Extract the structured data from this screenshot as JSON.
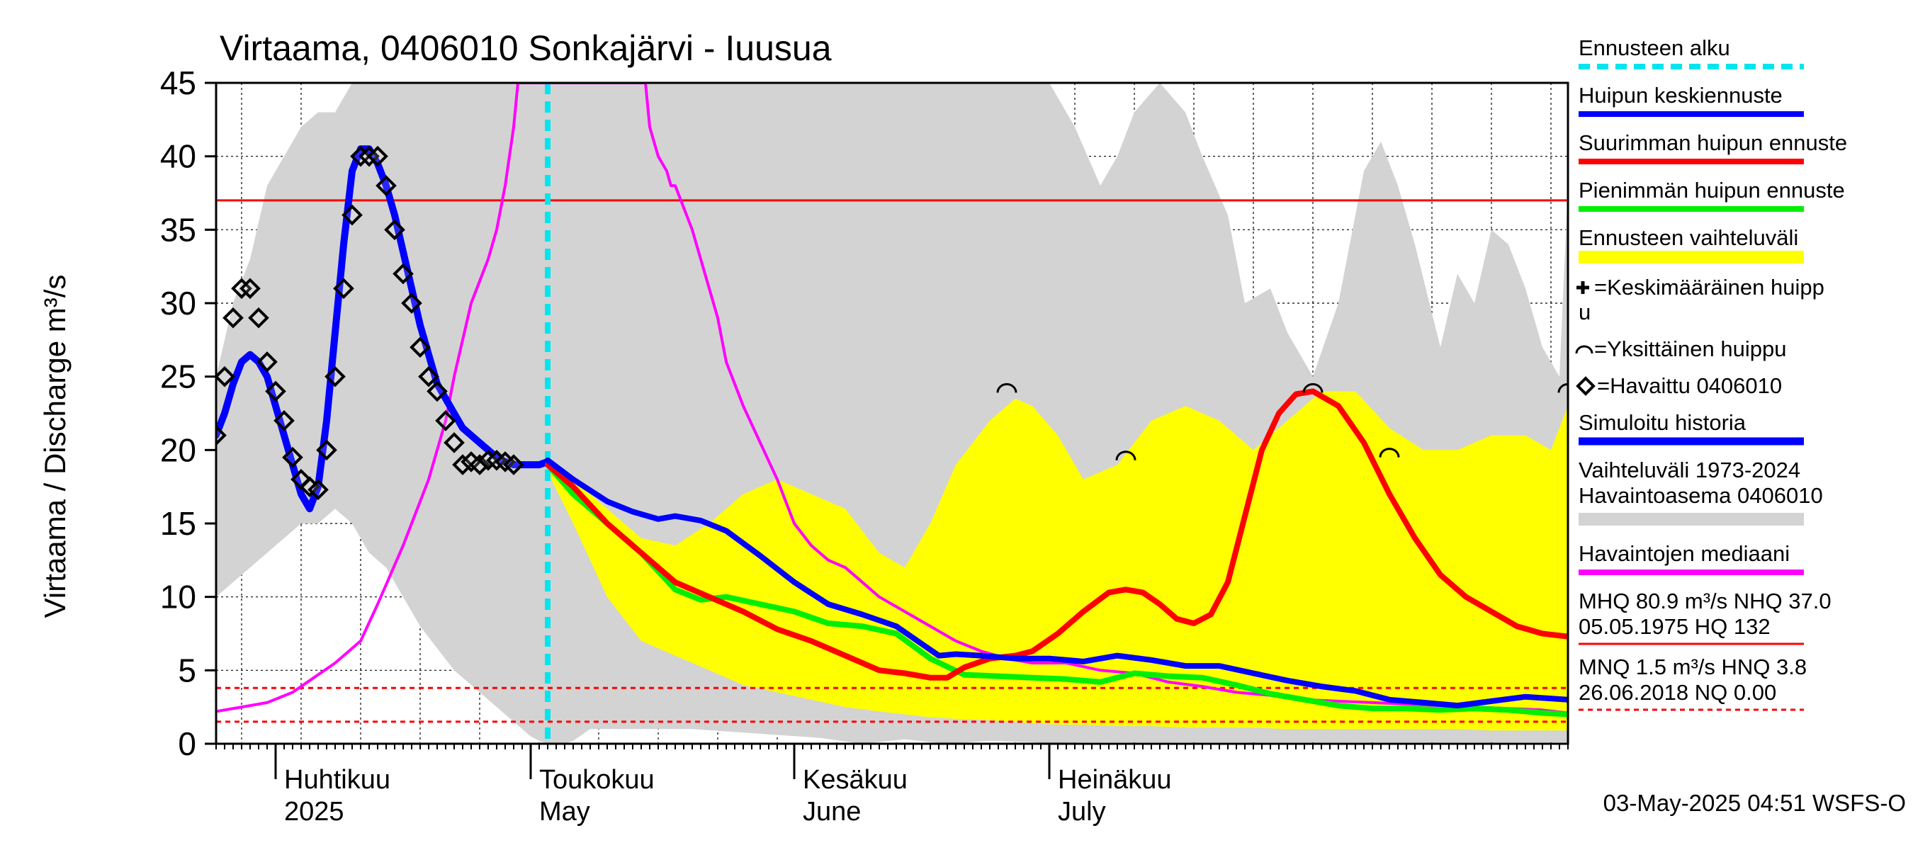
{
  "chart_data": {
    "type": "line",
    "title": "Virtaama, 0406010 Sonkajärvi - Iuusua",
    "ylabel": "Virtaama / Discharge    m³/s",
    "ylim": [
      0,
      45
    ],
    "y_ticks": [
      0,
      5,
      10,
      15,
      20,
      25,
      30,
      35,
      40,
      45
    ],
    "x_unit": "day of year 2025",
    "xlim": [
      84,
      243
    ],
    "forecast_start_day": 123,
    "months": [
      {
        "fi": "Huhtikuu",
        "en": "2025",
        "day": 91
      },
      {
        "fi": "Toukokuu",
        "en": "May",
        "day": 121
      },
      {
        "fi": "Kesäkuu",
        "en": "June",
        "day": 152
      },
      {
        "fi": "Heinäkuu",
        "en": "July",
        "day": 182
      }
    ],
    "hlines": [
      {
        "name": "NHQ 37.0",
        "y": 37.0,
        "color": "#ff0000",
        "style": "solid"
      },
      {
        "name": "HNQ 3.8",
        "y": 3.8,
        "color": "#ff0000",
        "style": "dashed"
      },
      {
        "name": "MNQ 1.5",
        "y": 1.5,
        "color": "#ff0000",
        "style": "dashed"
      },
      {
        "name": "NQ 0.00",
        "y": 0.0,
        "color": "#ff0000",
        "style": "dashed"
      }
    ],
    "historical_range": {
      "name": "Vaihteluväli 1973-2024 Havaintoasema 0406010",
      "color": "#d3d3d3",
      "x": [
        84,
        86,
        88,
        90,
        92,
        94,
        96,
        98,
        100,
        102,
        104,
        106,
        108,
        112,
        116,
        120,
        121,
        122,
        123,
        124,
        125,
        126,
        128,
        130,
        132,
        134,
        136,
        138,
        140,
        145,
        150,
        155,
        160,
        165,
        170,
        175,
        180,
        182,
        185,
        188,
        190,
        192,
        195,
        198,
        200,
        203,
        205,
        208,
        210,
        213,
        216,
        219,
        221,
        223,
        225,
        228,
        230,
        232,
        234,
        236,
        238,
        240,
        242,
        243
      ],
      "upper": [
        25,
        30,
        33,
        38,
        40,
        42,
        43,
        43,
        45,
        45,
        45,
        45,
        45,
        45,
        45,
        45,
        45,
        45,
        45,
        45,
        45,
        45,
        45,
        45,
        45,
        45,
        45,
        45,
        45,
        45,
        45,
        45,
        45,
        45,
        45,
        45,
        45,
        45,
        42,
        38,
        40,
        43,
        45,
        43,
        40,
        36,
        30,
        31,
        28,
        25,
        30,
        39,
        41,
        38,
        34,
        27,
        32,
        30,
        35,
        34,
        31,
        27,
        25,
        38
      ],
      "lower": [
        10,
        11,
        12,
        13,
        14,
        15,
        15,
        16,
        15,
        13,
        12,
        10,
        8,
        5,
        3,
        1,
        0.5,
        0.2,
        0,
        0,
        0,
        0.2,
        1,
        1,
        1,
        1,
        1,
        1,
        1,
        0.8,
        0.6,
        0.4,
        0,
        0.3,
        0,
        0.2,
        0.1,
        0,
        0.1,
        0.1,
        0.1,
        0.1,
        0.1,
        0.1,
        0.1,
        0.1,
        0.1,
        0.1,
        0.1,
        0.1,
        0.1,
        0.1,
        0.1,
        0.1,
        0.1,
        0.1,
        0.1,
        0.1,
        0.1,
        0.1,
        0.1,
        0.1,
        0.1,
        0.1
      ]
    },
    "forecast_range": {
      "name": "Ennusteen vaihteluväli",
      "color": "#ffff00",
      "x": [
        123,
        126,
        130,
        134,
        138,
        142,
        146,
        150,
        154,
        158,
        162,
        165,
        168,
        171,
        175,
        178,
        180,
        183,
        186,
        190,
        194,
        198,
        202,
        206,
        210,
        214,
        218,
        222,
        226,
        230,
        234,
        238,
        241,
        243
      ],
      "upper": [
        19.2,
        18,
        16,
        14,
        13.5,
        15,
        17,
        18,
        17,
        16,
        13,
        12,
        15,
        19,
        22,
        23.5,
        23,
        21,
        18,
        19,
        22,
        23,
        22,
        20,
        22,
        24,
        24,
        21.5,
        20,
        20,
        21,
        21,
        20,
        23
      ],
      "lower": [
        18.5,
        15,
        10,
        7,
        6,
        5,
        4,
        3.5,
        3,
        2.5,
        2.2,
        2,
        1.8,
        1.7,
        1.6,
        1.5,
        1.4,
        1.3,
        1.3,
        1.2,
        1.2,
        1.1,
        1.1,
        1.1,
        1.0,
        1.0,
        1.0,
        1.0,
        1.0,
        1.0,
        0.9,
        0.9,
        0.9,
        0.9
      ]
    },
    "series": [
      {
        "name": "Havaintojen mediaani",
        "color": "#ff00ff",
        "width": 4,
        "x": [
          84,
          88,
          90,
          93,
          95,
          98,
          101,
          103,
          106,
          107,
          109,
          111,
          112,
          114,
          116,
          117,
          118,
          119,
          119.5,
          120,
          121,
          122,
          123,
          126,
          129,
          132,
          134,
          134.5,
          135,
          136,
          137,
          137.5,
          138,
          140,
          141,
          143,
          144,
          146,
          148,
          150,
          152,
          154,
          156,
          158,
          160,
          162,
          165,
          168,
          171,
          174,
          177,
          180,
          184,
          188,
          192,
          196,
          200,
          204,
          208,
          212,
          216,
          220,
          224,
          228,
          232,
          236,
          240,
          243
        ],
        "y": [
          2.2,
          2.6,
          2.8,
          3.5,
          4.3,
          5.5,
          7,
          9.5,
          13.5,
          15,
          18,
          22,
          25,
          30,
          33,
          35,
          38,
          42,
          45,
          45,
          45,
          45,
          45,
          45,
          45,
          45,
          45,
          45,
          42,
          40,
          39,
          38,
          38,
          35,
          33,
          29,
          26,
          23,
          20.5,
          18,
          15,
          13.5,
          12.5,
          12,
          11,
          10,
          9,
          8,
          7,
          6.3,
          5.8,
          5.5,
          5.5,
          5,
          4.8,
          4.2,
          3.9,
          3.5,
          3.3,
          3,
          2.9,
          2.8,
          2.7,
          2.6,
          2.5,
          2.4,
          2.3,
          2.1
        ]
      },
      {
        "name": "Simuloitu historia",
        "color": "#0000ff",
        "width": 10,
        "x": [
          84,
          85,
          86,
          87,
          88,
          89,
          90,
          91,
          92,
          93,
          94,
          95,
          96,
          97,
          98,
          99,
          100,
          101,
          102,
          103,
          104,
          105,
          106,
          107,
          108,
          109,
          110,
          111,
          112,
          113,
          114,
          115,
          116,
          117,
          118,
          119,
          120,
          121,
          122,
          123
        ],
        "y": [
          21,
          22.5,
          24.5,
          26,
          26.5,
          26,
          25,
          23,
          21,
          19,
          17,
          16,
          17.5,
          22,
          28,
          34,
          39,
          40.5,
          40.5,
          39.5,
          38,
          36,
          33.5,
          31,
          28.5,
          26.5,
          24.5,
          23.5,
          22.5,
          21.5,
          21,
          20.5,
          20,
          19.5,
          19.2,
          19,
          19,
          19,
          19,
          19.2
        ]
      },
      {
        "name": "Pienimmän huipun ennuste",
        "color": "#00ee00",
        "width": 8,
        "x": [
          123,
          126,
          130,
          134,
          138,
          141,
          144,
          148,
          152,
          156,
          160,
          164,
          168,
          172,
          176,
          180,
          184,
          188,
          192,
          196,
          200,
          204,
          208,
          212,
          216,
          220,
          224,
          228,
          232,
          236,
          240,
          243
        ],
        "y": [
          19,
          17,
          15,
          13,
          10.5,
          9.8,
          10,
          9.5,
          9,
          8.2,
          8,
          7.5,
          5.8,
          4.7,
          4.6,
          4.5,
          4.4,
          4.2,
          4.8,
          4.6,
          4.5,
          4,
          3.4,
          3,
          2.6,
          2.4,
          2.4,
          2.3,
          2.4,
          2.3,
          2.1,
          2.0
        ]
      },
      {
        "name": "Suurimman huipun ennuste",
        "color": "#ff0000",
        "width": 8,
        "x": [
          123,
          126,
          130,
          134,
          138,
          142,
          146,
          150,
          154,
          158,
          162,
          165,
          168,
          170,
          172,
          175,
          178,
          180,
          183,
          186,
          189,
          191,
          193,
          195,
          197,
          199,
          201,
          203,
          205,
          207,
          209,
          211,
          213,
          216,
          219,
          222,
          225,
          228,
          231,
          234,
          237,
          240,
          243
        ],
        "y": [
          19,
          17.5,
          15,
          13,
          11,
          10,
          9,
          7.8,
          7,
          6,
          5,
          4.8,
          4.5,
          4.5,
          5.2,
          5.8,
          6,
          6.3,
          7.5,
          9,
          10.3,
          10.5,
          10.3,
          9.5,
          8.5,
          8.2,
          8.8,
          11,
          15.5,
          20,
          22.5,
          23.8,
          24,
          23,
          20.5,
          17,
          14,
          11.5,
          10,
          9,
          8,
          7.5,
          7.3
        ]
      },
      {
        "name": "Huipun keskiennuste",
        "color": "#0000ff",
        "width": 8,
        "x": [
          123,
          126,
          130,
          133,
          136,
          138,
          141,
          144,
          148,
          152,
          156,
          160,
          164,
          167,
          169,
          171,
          174,
          178,
          182,
          186,
          190,
          194,
          198,
          202,
          206,
          210,
          214,
          218,
          222,
          226,
          230,
          234,
          238,
          243
        ],
        "y": [
          19.3,
          18,
          16.5,
          15.8,
          15.3,
          15.5,
          15.2,
          14.5,
          12.8,
          11,
          9.5,
          8.8,
          8,
          6.8,
          6,
          6.1,
          6,
          5.8,
          5.8,
          5.6,
          6,
          5.7,
          5.3,
          5.3,
          4.8,
          4.3,
          3.9,
          3.6,
          3.0,
          2.8,
          2.6,
          2.9,
          3.2,
          3.0
        ]
      }
    ],
    "observed": {
      "name": "Havaittu 0406010",
      "marker": "diamond",
      "x": [
        84,
        85,
        86,
        87,
        88,
        89,
        90,
        91,
        92,
        93,
        94,
        95,
        96,
        97,
        98,
        99,
        100,
        101,
        102,
        103,
        104,
        105,
        106,
        107,
        108,
        109,
        110,
        111,
        112,
        113,
        114,
        115,
        116,
        117,
        118,
        119
      ],
      "y": [
        21,
        25,
        29,
        31,
        31,
        29,
        26,
        24,
        22,
        19.5,
        18,
        17.5,
        17.3,
        20,
        25,
        31,
        36,
        40,
        40,
        40,
        38,
        35,
        32,
        30,
        27,
        25,
        24,
        22,
        20.5,
        19,
        19.2,
        19,
        19.3,
        19.3,
        19.2,
        19.0
      ]
    },
    "single_peaks": {
      "name": "Yksittäinen huippu",
      "x": [
        177,
        191,
        213,
        222,
        243
      ],
      "y": [
        24,
        19.4,
        24,
        19.6,
        24
      ]
    },
    "legend": [
      {
        "label": "Ennusteen alku",
        "color": "#00e5ee",
        "type": "dashed"
      },
      {
        "label": "Huipun keskiennuste",
        "color": "#0000ff",
        "type": "line"
      },
      {
        "label": "Suurimman huipun ennuste",
        "color": "#ff0000",
        "type": "line"
      },
      {
        "label": "Pienimmän huipun ennuste",
        "color": "#00ee00",
        "type": "line"
      },
      {
        "label": "Ennusteen vaihteluväli",
        "color": "#ffff00",
        "type": "band"
      },
      {
        "label": "=Keskimääräinen huippu",
        "color": "#000000",
        "type": "marker-plus"
      },
      {
        "label": "=Yksittäinen huippu",
        "color": "#000000",
        "type": "marker-arc"
      },
      {
        "label": "=Havaittu 0406010",
        "color": "#000000",
        "type": "marker-diamond"
      },
      {
        "label": "Simuloitu historia",
        "color": "#0000ff",
        "type": "line-thick"
      },
      {
        "label": "Vaihteluväli 1973-2024",
        "label2": " Havaintoasema 0406010",
        "color": "#d3d3d3",
        "type": "band-gray"
      },
      {
        "label": "Havaintojen mediaani",
        "color": "#ff00ff",
        "type": "line"
      },
      {
        "label": "MHQ 80.9 m³/s NHQ 37.0",
        "label2": "05.05.1975 HQ  132",
        "color": "#ff0000",
        "type": "stat-solid"
      },
      {
        "label": "MNQ  1.5 m³/s HNQ  3.8",
        "label2": "26.06.2018 NQ 0.00",
        "color": "#ff0000",
        "type": "stat-dashed"
      }
    ],
    "footer": "03-May-2025 04:51 WSFS-O"
  }
}
